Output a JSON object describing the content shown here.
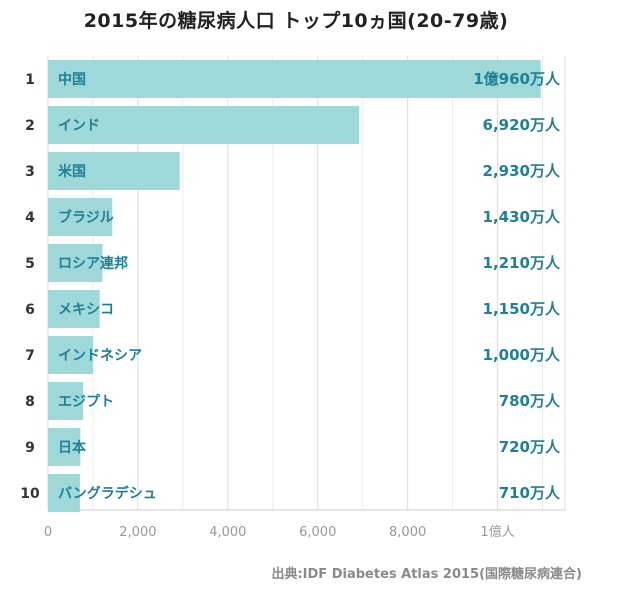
{
  "chart_data": {
    "type": "bar",
    "orientation": "horizontal",
    "title": "2015年の糖尿病人口 トップ10ヵ国(20-79歳)",
    "source": "出典:IDF Diabetes Atlas 2015(国際糖尿病連合)",
    "ranks": [
      "1",
      "2",
      "3",
      "4",
      "5",
      "6",
      "7",
      "8",
      "9",
      "10"
    ],
    "categories": [
      "中国",
      "インド",
      "米国",
      "ブラジル",
      "ロシア連邦",
      "メキシコ",
      "インドネシア",
      "エジプト",
      "日本",
      "バングラデシュ"
    ],
    "values": [
      10960,
      6920,
      2930,
      1430,
      1210,
      1150,
      1000,
      780,
      720,
      710
    ],
    "value_labels": [
      "1億960万人",
      "6,920万人",
      "2,930万人",
      "1,430万人",
      "1,210万人",
      "1,150万人",
      "1,000万人",
      "780万人",
      "720万人",
      "710万人"
    ],
    "x_ticks": [
      0,
      2000,
      4000,
      6000,
      8000,
      10000
    ],
    "x_tick_labels": [
      "0",
      "2,000",
      "4,000",
      "6,000",
      "8,000",
      "1億人"
    ],
    "xlim": [
      0,
      11500
    ],
    "bar_color": "#9fd8d9",
    "label_color": "#1f7f96",
    "grid": true
  }
}
